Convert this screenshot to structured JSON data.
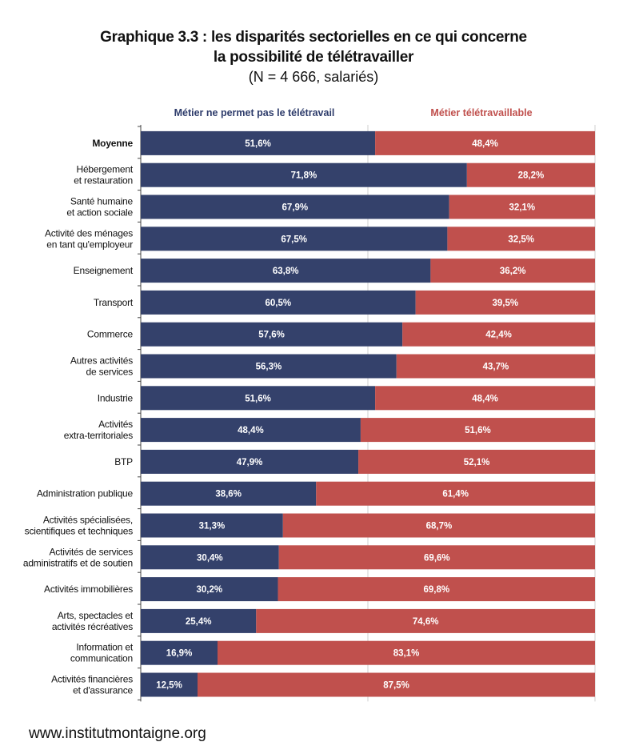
{
  "title": {
    "line1": "Graphique 3.3 : les disparités sectorielles en ce qui concerne",
    "line2": "la possibilité de télétravailler",
    "subtitle": "(N = 4 666, salariés)"
  },
  "footer": "www.institutmontaigne.org",
  "colors": {
    "navy": "#34416b",
    "red": "#c0504d",
    "legend_navy": "#2e3c6b",
    "legend_red": "#c0504d"
  },
  "chart_data": {
    "type": "bar",
    "stacked": true,
    "orientation": "horizontal",
    "legend_position": "top",
    "xlim": [
      0,
      100
    ],
    "categories": [
      [
        "Moyenne"
      ],
      [
        "Hébergement",
        "et restauration"
      ],
      [
        "Santé humaine",
        "et action sociale"
      ],
      [
        "Activité des ménages",
        "en tant qu'employeur"
      ],
      [
        "Enseignement"
      ],
      [
        "Transport"
      ],
      [
        "Commerce"
      ],
      [
        "Autres activités",
        "de services"
      ],
      [
        "Industrie"
      ],
      [
        "Activités",
        "extra-territoriales"
      ],
      [
        "BTP"
      ],
      [
        "Administration publique"
      ],
      [
        "Activités spécialisées,",
        "scientifiques et techniques"
      ],
      [
        "Activités de services",
        "administratifs et de soutien"
      ],
      [
        "Activités immobilières"
      ],
      [
        "Arts, spectacles et",
        "activités récréatives"
      ],
      [
        "Information et",
        "communication"
      ],
      [
        "Activités financières",
        "et d'assurance"
      ]
    ],
    "series": [
      {
        "name": "Métier ne permet pas le télétravail",
        "color": "#34416b",
        "values": [
          51.6,
          71.8,
          67.9,
          67.5,
          63.8,
          60.5,
          57.6,
          56.3,
          51.6,
          48.4,
          47.9,
          38.6,
          31.3,
          30.4,
          30.2,
          25.4,
          16.9,
          12.5
        ],
        "labels": [
          "51,6%",
          "71,8%",
          "67,9%",
          "67,5%",
          "63,8%",
          "60,5%",
          "57,6%",
          "56,3%",
          "51,6%",
          "48,4%",
          "47,9%",
          "38,6%",
          "31,3%",
          "30,4%",
          "30,2%",
          "25,4%",
          "16,9%",
          "12,5%"
        ]
      },
      {
        "name": "Métier télétravaillable",
        "color": "#c0504d",
        "values": [
          48.4,
          28.2,
          32.1,
          32.5,
          36.2,
          39.5,
          42.4,
          43.7,
          48.4,
          51.6,
          52.1,
          61.4,
          68.7,
          69.6,
          69.8,
          74.6,
          83.1,
          87.5
        ],
        "labels": [
          "48,4%",
          "28,2%",
          "32,1%",
          "32,5%",
          "36,2%",
          "39,5%",
          "42,4%",
          "43,7%",
          "48,4%",
          "51,6%",
          "52,1%",
          "61,4%",
          "68,7%",
          "69,6%",
          "69,8%",
          "74,6%",
          "83,1%",
          "87,5%"
        ]
      }
    ],
    "bold_categories": [
      0
    ]
  }
}
